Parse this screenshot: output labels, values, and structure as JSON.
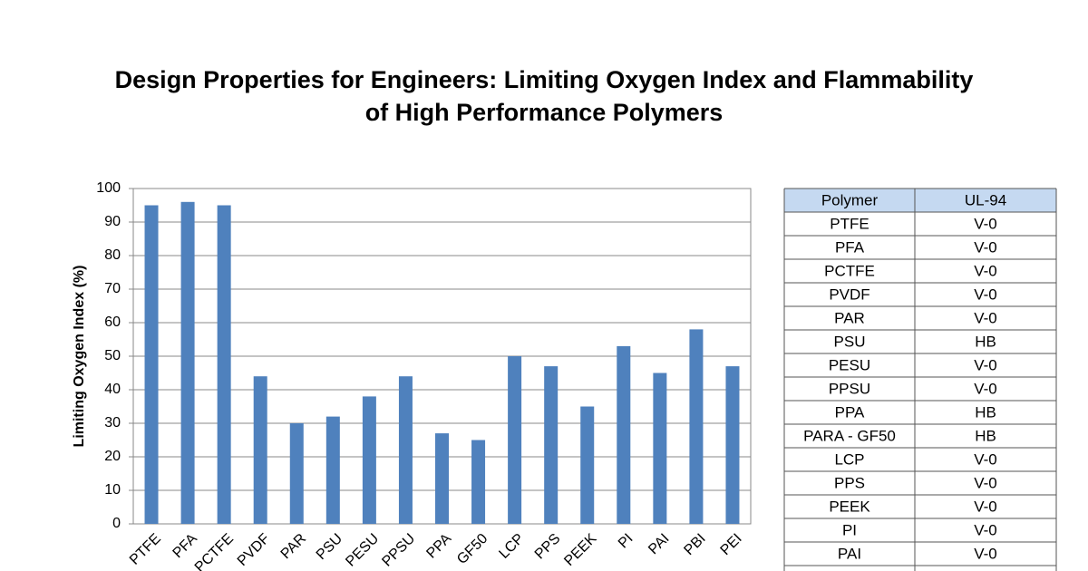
{
  "chart_data": {
    "type": "bar",
    "title": "Design Properties for Engineers: Limiting Oxygen Index and Flammability",
    "subtitle": "of High Performance Polymers",
    "y_label": "Limiting Oxygen Index (%)",
    "categories": [
      "PTFE",
      "PFA",
      "PCTFE",
      "PVDF",
      "PAR",
      "PSU",
      "PESU",
      "PPSU",
      "PPA",
      "GF50",
      "LCP",
      "PPS",
      "PEEK",
      "PI",
      "PAI",
      "PBI",
      "PEI"
    ],
    "values": [
      95,
      96,
      95,
      44,
      30,
      32,
      38,
      44,
      27,
      25,
      50,
      47,
      35,
      53,
      45,
      58,
      47
    ],
    "color": "#4f81bd",
    "ylim": [
      0,
      100
    ],
    "yticks": [
      0,
      10,
      20,
      30,
      40,
      50,
      60,
      70,
      80,
      90,
      100
    ],
    "grid": true
  },
  "table": {
    "header": [
      "Polymer",
      "UL-94"
    ],
    "rows": [
      [
        "PTFE",
        "V-0"
      ],
      [
        "PFA",
        "V-0"
      ],
      [
        "PCTFE",
        "V-0"
      ],
      [
        "PVDF",
        "V-0"
      ],
      [
        "PAR",
        "V-0"
      ],
      [
        "PSU",
        "HB"
      ],
      [
        "PESU",
        "V-0"
      ],
      [
        "PPSU",
        "V-0"
      ],
      [
        "PPA",
        "HB"
      ],
      [
        "PARA - GF50",
        "HB"
      ],
      [
        "LCP",
        "V-0"
      ],
      [
        "PPS",
        "V-0"
      ],
      [
        "PEEK",
        "V-0"
      ],
      [
        "PI",
        "V-0"
      ],
      [
        "PAI",
        "V-0"
      ]
    ]
  }
}
